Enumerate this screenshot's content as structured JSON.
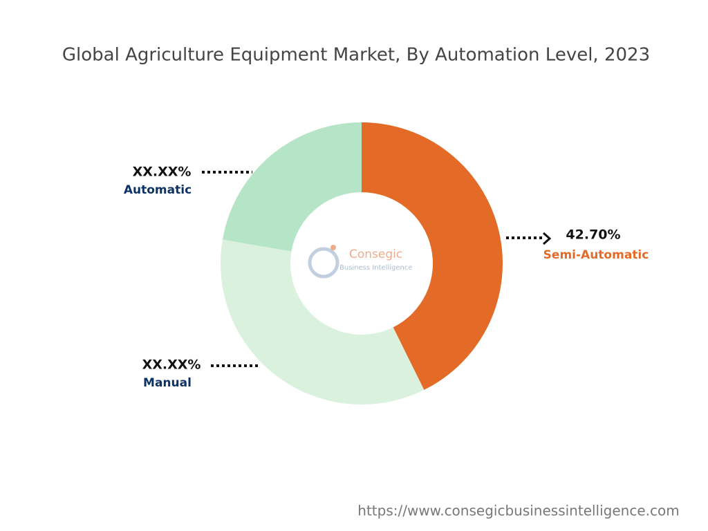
{
  "chart_data": {
    "type": "pie",
    "title": "Global Agriculture Equipment Market, By Automation Level, 2023",
    "categories": [
      "Semi-Automatic",
      "Manual",
      "Automatic"
    ],
    "values": [
      42.7,
      35.0,
      22.3
    ],
    "value_labels": [
      "42.70%",
      "XX.XX%",
      "XX.XX%"
    ],
    "colors": [
      "#e36a27",
      "#daf2dd",
      "#b5e4c7"
    ],
    "donut": true,
    "watermark": {
      "name": "Consegic",
      "tagline": "Business Intelligence"
    },
    "source": "https://www.consegicbusinessintelligence.com"
  }
}
